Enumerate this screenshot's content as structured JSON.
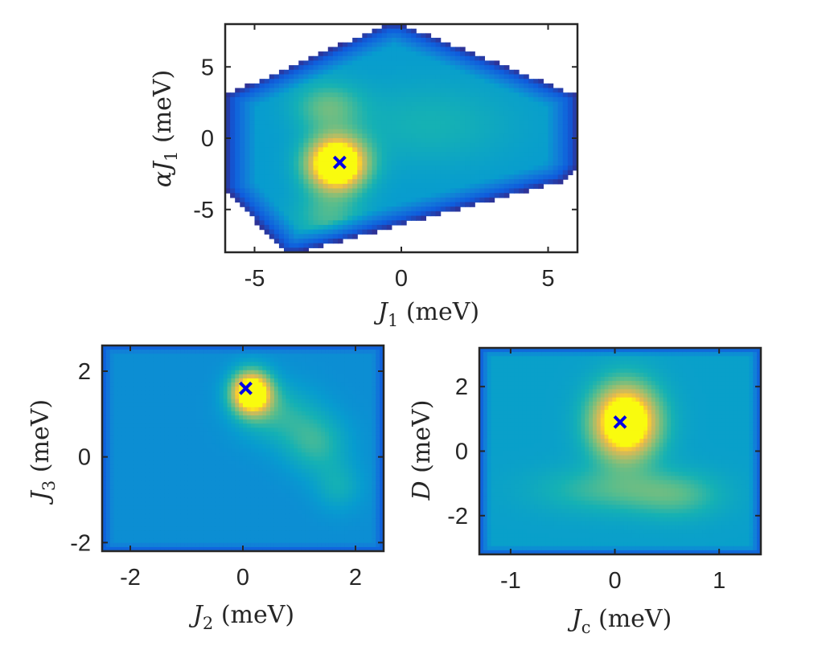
{
  "chart_data": [
    {
      "type": "heatmap",
      "xlim": [
        -6,
        6
      ],
      "ylim": [
        -8,
        8
      ],
      "xticks": [
        -5,
        0,
        5
      ],
      "yticks": [
        -5,
        0,
        5
      ],
      "xtick_labels": [
        "-5",
        "0",
        "5"
      ],
      "ytick_labels": [
        "-5",
        "0",
        "5"
      ],
      "xlabel": {
        "sym": "J",
        "sub": "1",
        "unit": " (meV)"
      },
      "ylabel": {
        "pre": "α",
        "sym": "J",
        "sub": "1",
        "unit": " (meV)"
      },
      "valid_region": [
        [
          -6,
          -3.5
        ],
        [
          -4,
          -8
        ],
        [
          -3.5,
          -8
        ],
        [
          5.5,
          -3
        ],
        [
          6,
          -2
        ],
        [
          6,
          3
        ],
        [
          0,
          8
        ],
        [
          -0.5,
          8
        ],
        [
          -6,
          3
        ]
      ],
      "peaks": [
        {
          "x": -2.2,
          "y": -1.8,
          "sx": 0.7,
          "sy": 1.3,
          "amp": 1.0
        },
        {
          "x": -2.5,
          "y": 2.2,
          "sx": 0.8,
          "sy": 1.2,
          "amp": 0.25
        },
        {
          "x": -2.5,
          "y": -5.5,
          "sx": 0.8,
          "sy": 1.2,
          "amp": 0.2
        },
        {
          "x": 1.0,
          "y": 1.0,
          "sx": 2.0,
          "sy": 2.0,
          "amp": 0.12
        }
      ],
      "background": 0.38,
      "marker": {
        "x": -2.1,
        "y": -1.7
      }
    },
    {
      "type": "heatmap",
      "xlim": [
        -2.5,
        2.5
      ],
      "ylim": [
        -2.2,
        2.6
      ],
      "xticks": [
        -2,
        0,
        2
      ],
      "yticks": [
        -2,
        0,
        2
      ],
      "xtick_labels": [
        "-2",
        "0",
        "2"
      ],
      "ytick_labels": [
        "-2",
        "0",
        "2"
      ],
      "xlabel": {
        "sym": "J",
        "sub": "2",
        "unit": " (meV)"
      },
      "ylabel": {
        "sym": "J",
        "sub": "3",
        "unit": " (meV)"
      },
      "peaks": [
        {
          "x": 0.15,
          "y": 1.5,
          "sx": 0.25,
          "sy": 0.35,
          "amp": 0.95
        },
        {
          "x": 0.6,
          "y": 1.0,
          "sx": 0.5,
          "sy": 0.5,
          "amp": 0.2
        },
        {
          "x": 1.3,
          "y": 0.3,
          "sx": 0.4,
          "sy": 0.5,
          "amp": 0.22
        },
        {
          "x": 1.7,
          "y": -0.7,
          "sx": 0.3,
          "sy": 0.4,
          "amp": 0.15
        }
      ],
      "background": 0.32,
      "marker": {
        "x": 0.05,
        "y": 1.6
      }
    },
    {
      "type": "heatmap",
      "xlim": [
        -1.3,
        1.4
      ],
      "ylim": [
        -3.2,
        3.2
      ],
      "xticks": [
        -1,
        0,
        1
      ],
      "yticks": [
        -2,
        0,
        2
      ],
      "xtick_labels": [
        "-1",
        "0",
        "1"
      ],
      "ytick_labels": [
        "-2",
        "0",
        "2"
      ],
      "xlabel": {
        "sym": "J",
        "sub": "c",
        "unit": " (meV)"
      },
      "ylabel": {
        "sym": "D",
        "sub": "",
        "unit": " (meV)"
      },
      "peaks": [
        {
          "x": 0.1,
          "y": 0.9,
          "sx": 0.22,
          "sy": 0.8,
          "amp": 0.9
        },
        {
          "x": 0.0,
          "y": -1.2,
          "sx": 0.5,
          "sy": 0.5,
          "amp": 0.18
        },
        {
          "x": 0.6,
          "y": -1.4,
          "sx": 0.3,
          "sy": 0.5,
          "amp": 0.15
        }
      ],
      "background": 0.4,
      "marker": {
        "x": 0.05,
        "y": 0.9
      }
    }
  ]
}
